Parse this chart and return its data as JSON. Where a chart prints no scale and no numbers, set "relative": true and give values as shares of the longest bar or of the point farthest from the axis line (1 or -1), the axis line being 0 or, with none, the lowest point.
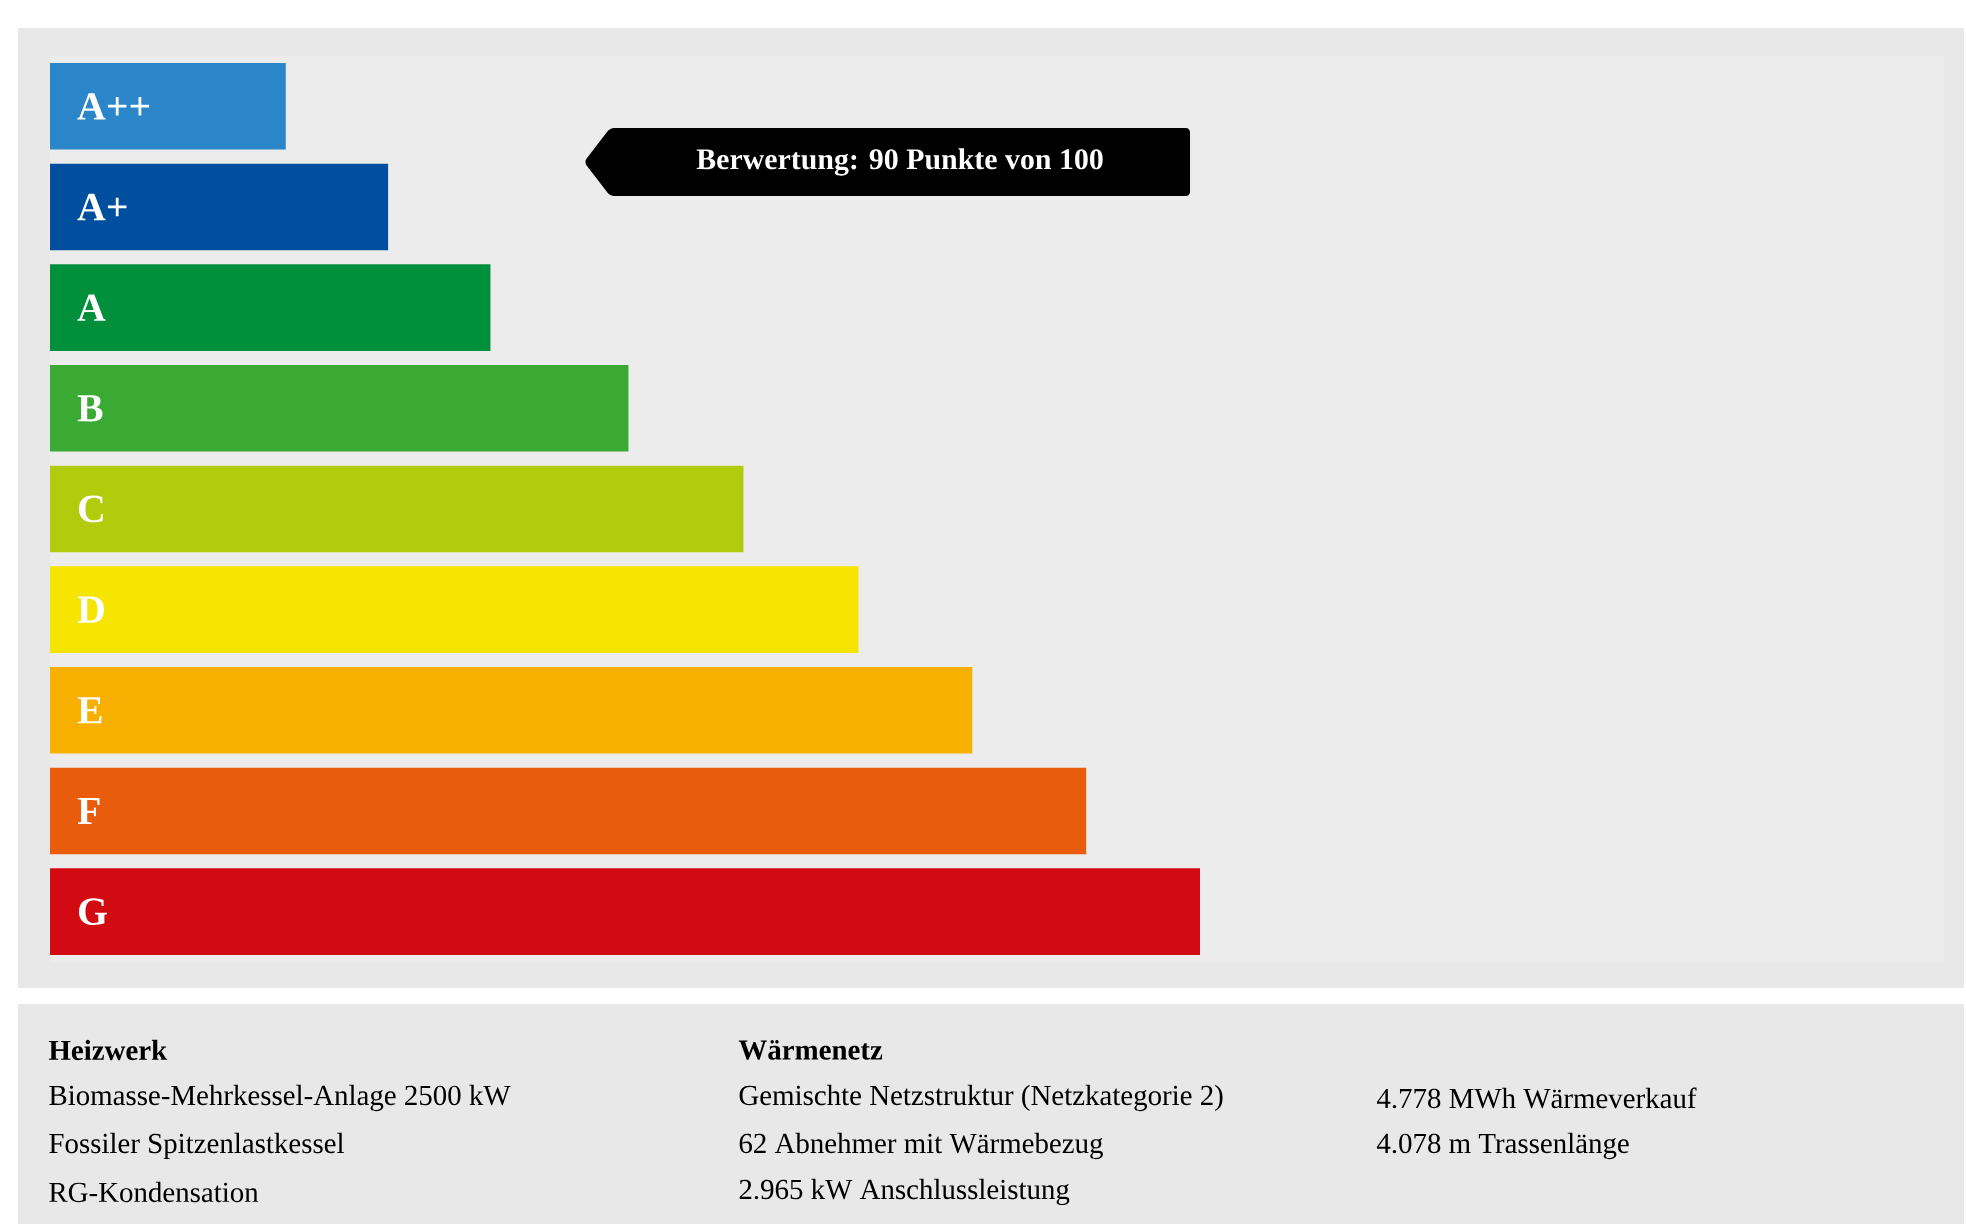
{
  "chart_data": {
    "type": "bar",
    "orientation": "horizontal",
    "relative": true,
    "categories": [
      "A++",
      "A+",
      "A",
      "B",
      "C",
      "D",
      "E",
      "F",
      "G"
    ],
    "values": [
      0.205,
      0.294,
      0.383,
      0.503,
      0.603,
      0.703,
      0.802,
      0.901,
      1.0
    ],
    "colors": [
      "#2a86c8",
      "#004f9f",
      "#008f3a",
      "#3aaa35",
      "#b2cb0c",
      "#f6e500",
      "#f7b000",
      "#e95c0c",
      "#d20a11"
    ],
    "annotations": [
      "Berwertung: 90 Punkte von 100",
      "Heizwerk",
      "Biomasse-Mehrkessel-Anlage 2500 kW",
      "Fossiler Spitzenlastkessel",
      "RG-Kondensation",
      "Wärmenetz",
      "Gemischte Netzstruktur (Netzkategorie 2)",
      "62 Abnehmer mit Wärmebezug",
      "2.965 kW Anschlussleistung",
      "4.778 MWh Wärmeverkauf",
      "4.078 m Trassenlänge"
    ]
  }
}
